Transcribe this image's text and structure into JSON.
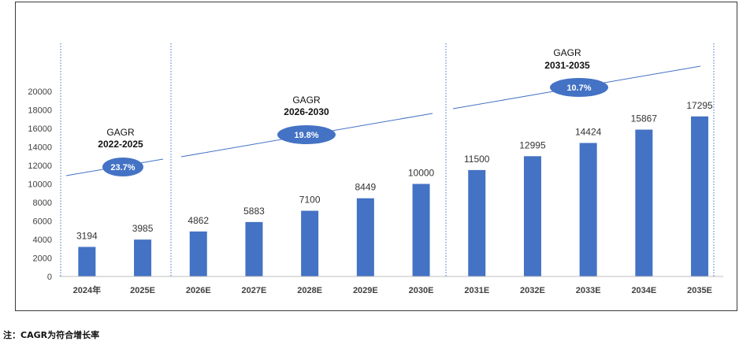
{
  "chart_data": {
    "type": "bar",
    "title": "",
    "xlabel": "",
    "ylabel": "",
    "ylim": [
      0,
      20000
    ],
    "yticks": [
      0,
      2000,
      4000,
      6000,
      8000,
      10000,
      12000,
      14000,
      16000,
      18000,
      20000
    ],
    "categories": [
      "2024年",
      "2025E",
      "2026E",
      "2027E",
      "2028E",
      "2029E",
      "2030E",
      "2031E",
      "2032E",
      "2033E",
      "2034E",
      "2035E"
    ],
    "values": [
      3194,
      3985,
      4862,
      5883,
      7100,
      8449,
      10000,
      11500,
      12995,
      14424,
      15867,
      17295
    ],
    "bar_color": "#4472c4",
    "grid": false,
    "legend": "none",
    "annotations": [
      {
        "title": "GAGR",
        "period": "2022-2025",
        "rate": "23.7%"
      },
      {
        "title": "GAGR",
        "period": "2026-2030",
        "rate": "19.8%"
      },
      {
        "title": "GAGR",
        "period": "2031-2035",
        "rate": "10.7%"
      }
    ]
  },
  "footnote": "注：CAGR为符合增长率",
  "colors": {
    "bar": "#4472c4",
    "ellipse": "#4472c4",
    "trend_line": "#4472c4",
    "divider": "#4472c4"
  }
}
